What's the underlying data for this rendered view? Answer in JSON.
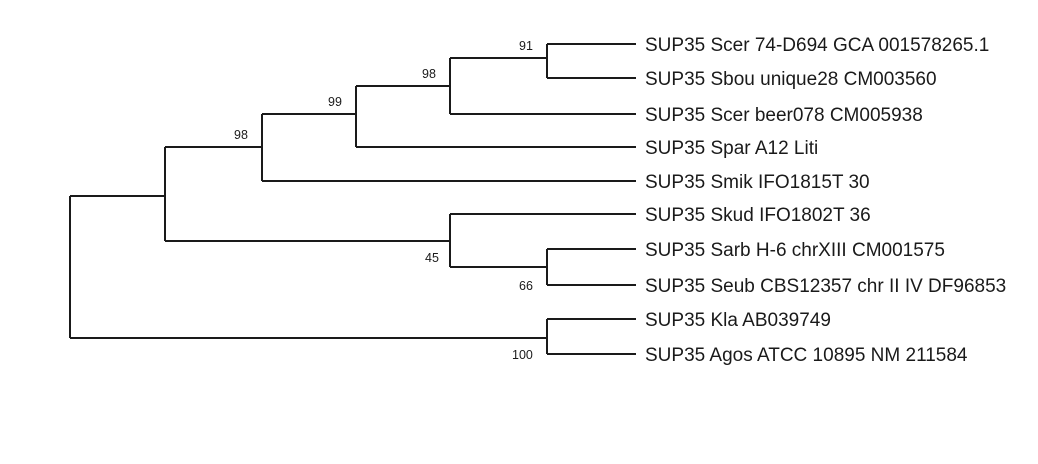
{
  "tree": {
    "leaves": [
      "SUP35 Scer 74-D694 GCA 001578265.1",
      "SUP35 Sbou unique28 CM003560",
      "SUP35 Scer beer078 CM005938",
      "SUP35 Spar A12 Liti",
      "SUP35 Smik IFO1815T 30",
      "SUP35 Skud IFO1802T 36",
      "SUP35 Sarb H-6 chrXIII CM001575",
      "SUP35 Seub CBS12357 chr II IV DF96853",
      "SUP35 Kla AB039749",
      "SUP35 Agos ATCC 10895 NM 211584"
    ],
    "support_values": {
      "node_scer_sbou": "91",
      "node_scer_sbou_beer": "98",
      "node_with_spar": "99",
      "node_with_smik": "98",
      "node_skud_sarb_seub": "45",
      "node_sarb_seub": "66",
      "node_kla_agos": "100"
    }
  }
}
